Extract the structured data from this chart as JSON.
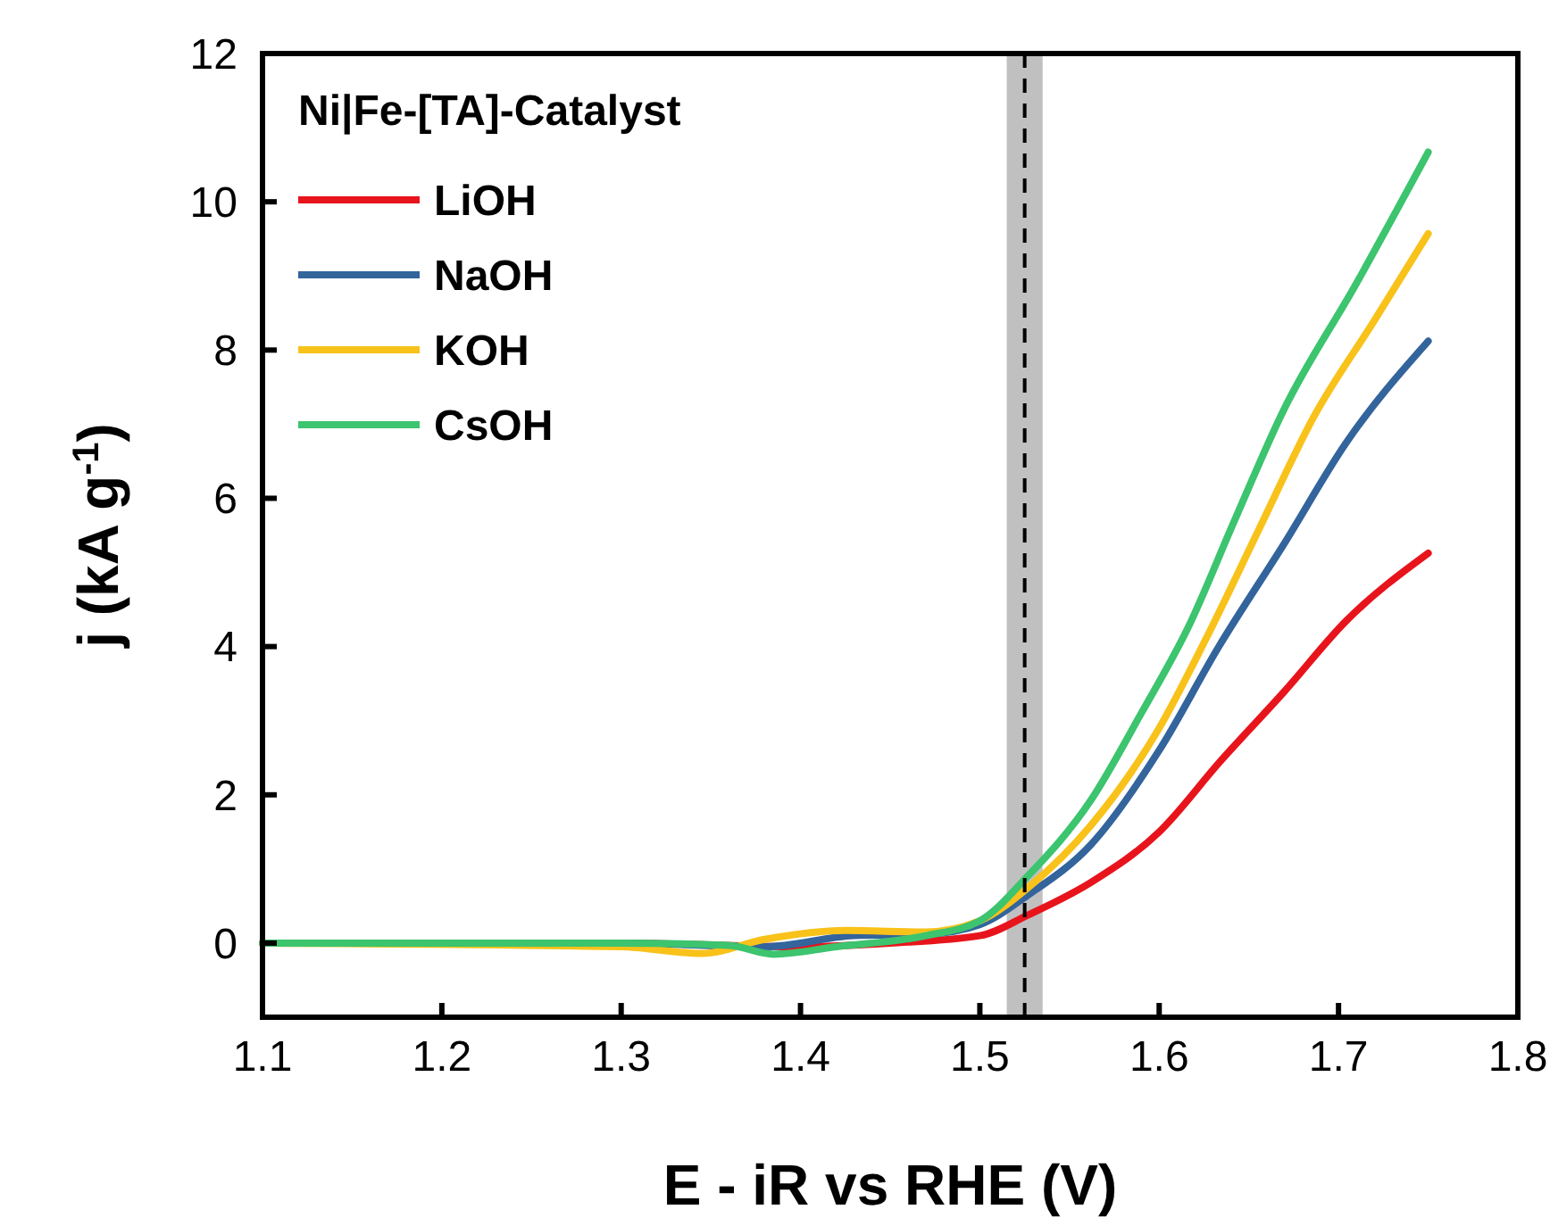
{
  "chart_data": {
    "type": "line",
    "xlabel": "E - iR vs RHE (V)",
    "ylabel": "j (kA g$^{-1}$)",
    "legend_title": "Ni|Fe-[TA]-Catalyst",
    "legend": "top left",
    "grid": false,
    "xlim": [
      1.1,
      1.8
    ],
    "xticks": [
      1.1,
      1.2,
      1.3,
      1.4,
      1.5,
      1.6,
      1.7,
      1.8
    ],
    "ylim": [
      -1,
      12
    ],
    "yticks": [
      0,
      2,
      4,
      6,
      8,
      10,
      12
    ],
    "bands": [
      {
        "axis": "x",
        "from": 1.515,
        "to": 1.535,
        "color": "#c0c0c0"
      }
    ],
    "ref_lines": [
      {
        "axis": "x",
        "value": 1.525,
        "color": "#000000",
        "line_style": "dashed"
      }
    ],
    "series": [
      {
        "name": "LiOH",
        "color": "#e8141c",
        "x": [
          1.1,
          1.3,
          1.4,
          1.45,
          1.5,
          1.527,
          1.562,
          1.6,
          1.634,
          1.67,
          1.704,
          1.75
        ],
        "values": [
          0,
          0,
          -0.05,
          0,
          0.1,
          0.38,
          0.82,
          1.5,
          2.45,
          3.4,
          4.34,
          5.26
        ]
      },
      {
        "name": "NaOH",
        "color": "#33649c",
        "x": [
          1.1,
          1.3,
          1.38,
          1.43,
          1.47,
          1.5,
          1.527,
          1.562,
          1.6,
          1.633,
          1.67,
          1.704,
          1.75
        ],
        "values": [
          0,
          0,
          -0.05,
          0.1,
          0.12,
          0.25,
          0.65,
          1.33,
          2.6,
          3.99,
          5.4,
          6.74,
          8.12
        ]
      },
      {
        "name": "KOH",
        "color": "#f8c21a",
        "x": [
          1.1,
          1.3,
          1.345,
          1.38,
          1.425,
          1.47,
          1.5,
          1.527,
          1.562,
          1.6,
          1.626,
          1.656,
          1.686,
          1.72,
          1.75
        ],
        "values": [
          0,
          -0.05,
          -0.14,
          0.05,
          0.17,
          0.15,
          0.3,
          0.75,
          1.59,
          2.9,
          4.1,
          5.6,
          7.09,
          8.4,
          9.57
        ]
      },
      {
        "name": "CsOH",
        "color": "#3cc46e",
        "x": [
          1.1,
          1.3,
          1.36,
          1.385,
          1.42,
          1.47,
          1.5,
          1.527,
          1.562,
          1.59,
          1.616,
          1.642,
          1.669,
          1.71,
          1.75
        ],
        "values": [
          0,
          0,
          -0.03,
          -0.15,
          -0.05,
          0.1,
          0.3,
          0.91,
          1.93,
          3.1,
          4.25,
          5.7,
          7.17,
          8.9,
          10.67
        ]
      }
    ]
  }
}
